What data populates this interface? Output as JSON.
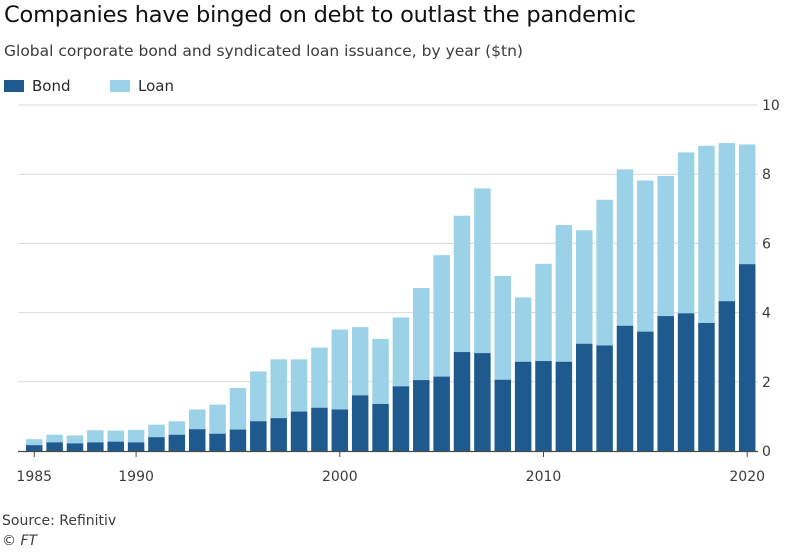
{
  "header": {
    "title": "Companies have binged on debt to outlast the pandemic",
    "subtitle": "Global corporate bond and syndicated loan issuance, by year ($tn)"
  },
  "footer": {
    "source": "Source: Refinitiv",
    "credit": "© FT"
  },
  "colors": {
    "bond": "#1f5a8f",
    "loan": "#9bd2e8",
    "axis": "#4a4a4a",
    "grid": "#d9d9d9"
  },
  "chart_data": {
    "type": "bar",
    "stacked": true,
    "x": [
      1985,
      1986,
      1987,
      1988,
      1989,
      1990,
      1991,
      1992,
      1993,
      1994,
      1995,
      1996,
      1997,
      1998,
      1999,
      2000,
      2001,
      2002,
      2003,
      2004,
      2005,
      2006,
      2007,
      2008,
      2009,
      2010,
      2011,
      2012,
      2013,
      2014,
      2015,
      2016,
      2017,
      2018,
      2019,
      2020
    ],
    "series": [
      {
        "name": "Bond",
        "values": [
          0.17,
          0.25,
          0.22,
          0.25,
          0.27,
          0.25,
          0.4,
          0.47,
          0.63,
          0.5,
          0.62,
          0.86,
          0.95,
          1.14,
          1.25,
          1.2,
          1.61,
          1.36,
          1.87,
          2.05,
          2.15,
          2.86,
          2.83,
          2.06,
          2.58,
          2.6,
          2.58,
          3.1,
          3.05,
          3.62,
          3.45,
          3.9,
          3.98,
          3.7,
          4.33,
          5.4
        ]
      },
      {
        "name": "Loan",
        "values": [
          0.17,
          0.22,
          0.23,
          0.35,
          0.32,
          0.36,
          0.36,
          0.39,
          0.57,
          0.84,
          1.2,
          1.44,
          1.7,
          1.51,
          1.74,
          2.31,
          1.97,
          1.88,
          1.99,
          2.66,
          3.51,
          3.94,
          4.76,
          3.0,
          1.86,
          2.81,
          3.95,
          3.28,
          4.21,
          4.52,
          4.37,
          4.05,
          4.65,
          5.12,
          4.57,
          3.46
        ]
      }
    ],
    "xticks": [
      "1985",
      "1990",
      "2000",
      "2010",
      "2020"
    ],
    "yticks": [
      "0",
      "2",
      "4",
      "6",
      "8",
      "10"
    ],
    "ylim": [
      0,
      10
    ],
    "grid": "horizontal",
    "legend": "top-left",
    "y_axis_side": "right"
  }
}
